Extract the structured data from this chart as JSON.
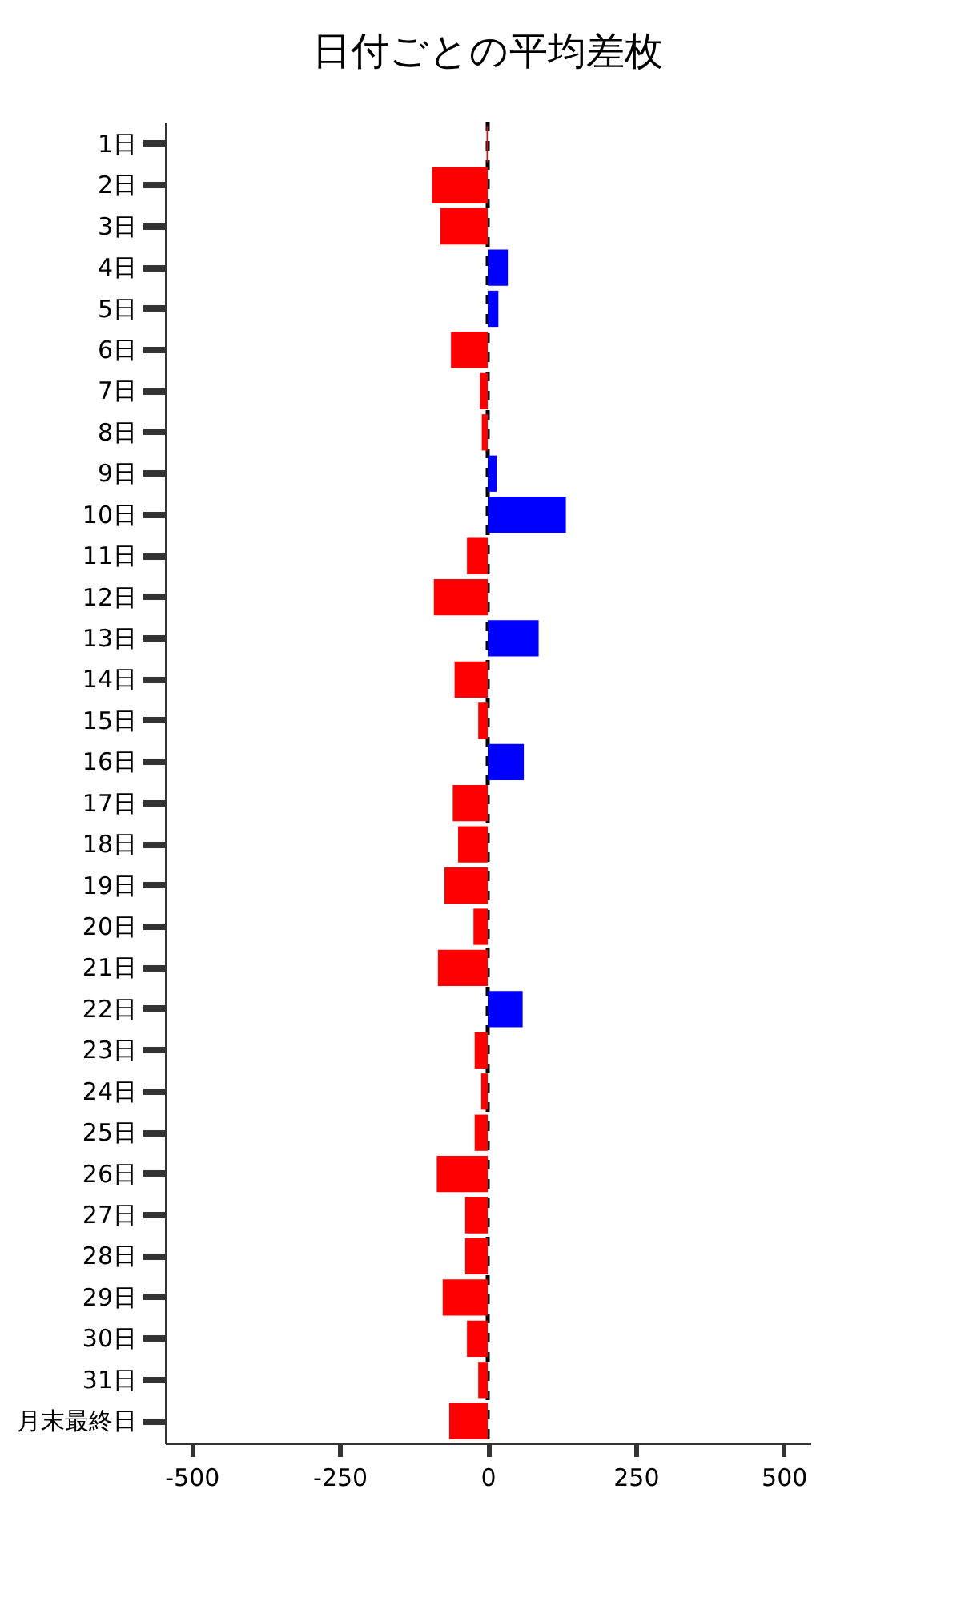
{
  "chart_data": {
    "type": "bar",
    "orientation": "horizontal",
    "title": "日付ごとの平均差枚",
    "categories": [
      "1日",
      "2日",
      "3日",
      "4日",
      "5日",
      "6日",
      "7日",
      "8日",
      "9日",
      "10日",
      "11日",
      "12日",
      "13日",
      "14日",
      "15日",
      "16日",
      "17日",
      "18日",
      "19日",
      "20日",
      "21日",
      "22日",
      "23日",
      "24日",
      "25日",
      "26日",
      "27日",
      "28日",
      "29日",
      "30日",
      "31日",
      "月末最終日"
    ],
    "values": [
      -2,
      -94,
      -80,
      34,
      18,
      -62,
      -13,
      -10,
      15,
      132,
      -35,
      -91,
      86,
      -56,
      -16,
      61,
      -59,
      -50,
      -73,
      -24,
      -84,
      59,
      -22,
      -11,
      -22,
      -86,
      -38,
      -38,
      -76,
      -35,
      -16,
      -65
    ],
    "colors": [
      "#ff0000",
      "#ff0000",
      "#ff0000",
      "#0000ff",
      "#0000ff",
      "#ff0000",
      "#ff0000",
      "#ff0000",
      "#0000ff",
      "#0000ff",
      "#ff0000",
      "#ff0000",
      "#0000ff",
      "#ff0000",
      "#ff0000",
      "#0000ff",
      "#ff0000",
      "#ff0000",
      "#ff0000",
      "#ff0000",
      "#ff0000",
      "#0000ff",
      "#ff0000",
      "#ff0000",
      "#ff0000",
      "#ff0000",
      "#ff0000",
      "#ff0000",
      "#ff0000",
      "#ff0000",
      "#ff0000",
      "#ff0000"
    ],
    "xlim": [
      -545,
      545
    ],
    "xticks": [
      -500,
      -250,
      0,
      250,
      500
    ],
    "ref_lines": [
      {
        "axis": "x",
        "value": 0,
        "color": "#000000",
        "line_style": "dashed"
      }
    ],
    "grid": false
  }
}
